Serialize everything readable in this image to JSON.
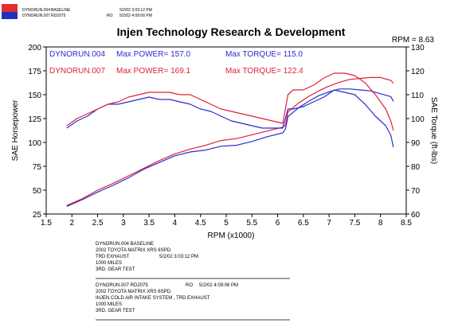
{
  "header": {
    "run1_name": "DYNORUN.004",
    "run1_label": "BASELINE",
    "run1_date": "5/2/02 3:03:12 PM",
    "run2_name": "DYNORUN.007",
    "run2_label": "RD2075",
    "run2_ro": "RO",
    "run2_date": "5/2/02 4:09:06 PM",
    "logo_colors": {
      "red": "#e03030",
      "blue": "#2030c0"
    }
  },
  "chart_data": {
    "type": "line",
    "title": "Injen Technology Research & Development",
    "rpm_readout": "RPM = 8.63",
    "xlabel": "RPM (x1000)",
    "ylabel_left": "SAE Horsepower",
    "ylabel_right": "SAE Torque (ft-lbs)",
    "xlim": [
      1.5,
      8.5
    ],
    "ylim_left": [
      25,
      200
    ],
    "ylim_right": [
      60,
      130
    ],
    "x_ticks": [
      "1.5",
      "2",
      "2.5",
      "3",
      "3.5",
      "4",
      "4.5",
      "5",
      "5.5",
      "6",
      "6.5",
      "7",
      "7.5",
      "8",
      "8.5"
    ],
    "y_left_ticks": [
      "25",
      "50",
      "75",
      "100",
      "125",
      "150",
      "175",
      "200"
    ],
    "y_right_ticks": [
      "60",
      "70",
      "80",
      "90",
      "100",
      "110",
      "120",
      "130"
    ],
    "legend": {
      "run1": {
        "name": "DYNORUN.004",
        "max_power": "Max POWER= 157.0",
        "max_torque": "Max TORQUE= 115.0",
        "color": "#2b2bd0"
      },
      "run2": {
        "name": "DYNORUN.007",
        "max_power": "Max POWER= 169.1",
        "max_torque": "Max TORQUE= 122.4",
        "color": "#e0203a"
      }
    },
    "series": [
      {
        "run": "DYNORUN.004",
        "measure": "SAE Horsepower",
        "axis": "left",
        "color": "#2b2bd0",
        "x": [
          1.9,
          2.2,
          2.5,
          2.8,
          3.1,
          3.4,
          3.7,
          4.0,
          4.3,
          4.6,
          4.9,
          5.2,
          5.5,
          5.8,
          6.1,
          6.15,
          6.2,
          6.4,
          6.6,
          6.8,
          7.0,
          7.2,
          7.4,
          7.6,
          7.8,
          8.0,
          8.2,
          8.25
        ],
        "values": [
          33,
          40,
          48,
          55,
          63,
          72,
          79,
          86,
          90,
          92,
          96,
          97,
          101,
          106,
          110,
          114,
          127,
          136,
          143,
          149,
          153,
          156,
          156,
          155,
          154,
          151,
          148,
          143
        ]
      },
      {
        "run": "DYNORUN.007",
        "measure": "SAE Horsepower",
        "axis": "left",
        "color": "#e0203a",
        "x": [
          1.9,
          2.2,
          2.5,
          2.8,
          3.1,
          3.4,
          3.7,
          4.0,
          4.3,
          4.6,
          4.9,
          5.2,
          5.5,
          5.8,
          6.1,
          6.15,
          6.2,
          6.4,
          6.6,
          6.8,
          7.0,
          7.2,
          7.4,
          7.6,
          7.8,
          8.0,
          8.2,
          8.25
        ],
        "values": [
          34,
          41,
          50,
          57,
          65,
          73,
          81,
          88,
          93,
          97,
          102,
          104,
          108,
          112,
          116,
          118,
          132,
          141,
          148,
          154,
          159,
          163,
          166,
          167,
          168,
          168,
          165,
          162
        ]
      },
      {
        "run": "DYNORUN.004",
        "measure": "SAE Torque",
        "axis": "right",
        "color": "#2b2bd0",
        "x": [
          1.9,
          2.1,
          2.3,
          2.5,
          2.7,
          2.9,
          3.1,
          3.3,
          3.5,
          3.7,
          3.9,
          4.1,
          4.3,
          4.5,
          4.7,
          4.9,
          5.1,
          5.3,
          5.5,
          5.7,
          5.9,
          6.1,
          6.2,
          6.3,
          6.5,
          6.7,
          6.9,
          7.1,
          7.3,
          7.5,
          7.7,
          7.9,
          8.1,
          8.2,
          8.25
        ],
        "values": [
          96,
          99,
          101,
          104,
          106,
          106,
          107,
          108,
          109,
          108,
          108,
          107,
          106,
          104,
          103,
          101,
          99,
          98,
          97,
          96,
          96,
          96,
          104,
          104,
          105,
          107,
          109,
          112,
          111,
          110,
          106,
          101,
          97,
          93,
          88
        ]
      },
      {
        "run": "DYNORUN.007",
        "measure": "SAE Torque",
        "axis": "right",
        "color": "#e0203a",
        "x": [
          1.9,
          2.1,
          2.3,
          2.5,
          2.7,
          2.9,
          3.1,
          3.3,
          3.5,
          3.7,
          3.9,
          4.1,
          4.3,
          4.5,
          4.7,
          4.9,
          5.1,
          5.3,
          5.5,
          5.7,
          5.9,
          6.1,
          6.2,
          6.3,
          6.5,
          6.7,
          6.9,
          7.1,
          7.3,
          7.5,
          7.7,
          7.9,
          8.1,
          8.2,
          8.25
        ],
        "values": [
          97,
          100,
          102,
          104,
          106,
          107,
          109,
          110,
          111,
          111,
          111,
          110,
          110,
          108,
          106,
          104,
          103,
          102,
          101,
          100,
          99,
          98,
          110,
          112,
          112,
          114,
          117,
          119,
          119,
          118,
          115,
          110,
          104,
          99,
          95
        ]
      }
    ]
  },
  "info_block": {
    "run1_line": "DYNORUN.004    BASELINE",
    "run1_vehicle": "2002 TOYOTA MATRIX XRS 6SPD.",
    "run1_date": "5/2/02 3:03:12 PM",
    "run1_exhaust": "TRD EXHAUST",
    "run1_miles": "1000 MILES",
    "run1_test": "3RD. GEAR TEST",
    "run2_line": "DYNORUN.007    RD2075",
    "run2_ro": "RO",
    "run2_date": "5/2/02 4:09:06 PM",
    "run2_vehicle": "2002 TOYOTA MATRIX XRS 6SPD.",
    "run2_intake": "INJEN COLD AIR INTAKE SYSTEM , TRD EXHAUST",
    "run2_miles": "1000 MILES",
    "run2_test": "3RD. GEAR TEST"
  }
}
